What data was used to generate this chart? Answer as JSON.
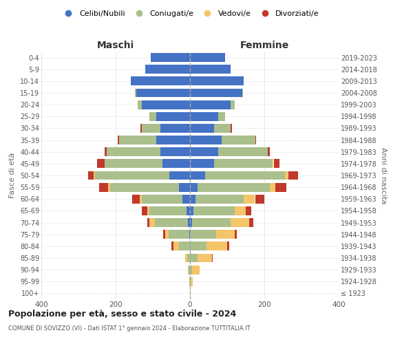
{
  "age_groups": [
    "100+",
    "95-99",
    "90-94",
    "85-89",
    "80-84",
    "75-79",
    "70-74",
    "65-69",
    "60-64",
    "55-59",
    "50-54",
    "45-49",
    "40-44",
    "35-39",
    "30-34",
    "25-29",
    "20-24",
    "15-19",
    "10-14",
    "5-9",
    "0-4"
  ],
  "birth_years": [
    "≤ 1923",
    "1924-1928",
    "1929-1933",
    "1934-1938",
    "1939-1943",
    "1944-1948",
    "1949-1953",
    "1954-1958",
    "1959-1963",
    "1964-1968",
    "1969-1973",
    "1974-1978",
    "1979-1983",
    "1984-1988",
    "1989-1993",
    "1994-1998",
    "1999-2003",
    "2004-2008",
    "2009-2013",
    "2014-2018",
    "2019-2023"
  ],
  "colors": {
    "celibe": "#4472C4",
    "coniugato": "#AABF8C",
    "vedovo": "#F5C56A",
    "divorziato": "#C0392B"
  },
  "maschi": {
    "celibe": [
      0,
      0,
      0,
      0,
      0,
      2,
      5,
      10,
      20,
      30,
      55,
      75,
      80,
      90,
      80,
      90,
      130,
      145,
      160,
      120,
      105
    ],
    "coniugato": [
      0,
      1,
      3,
      8,
      30,
      55,
      90,
      100,
      110,
      185,
      200,
      155,
      145,
      100,
      50,
      20,
      10,
      3,
      0,
      0,
      0
    ],
    "vedovo": [
      0,
      0,
      2,
      5,
      15,
      10,
      15,
      5,
      5,
      5,
      5,
      0,
      0,
      0,
      0,
      0,
      0,
      0,
      0,
      0,
      0
    ],
    "divorziato": [
      0,
      0,
      0,
      0,
      5,
      5,
      5,
      15,
      20,
      25,
      15,
      20,
      5,
      5,
      3,
      0,
      0,
      0,
      0,
      0,
      0
    ]
  },
  "femmine": {
    "celibe": [
      0,
      0,
      0,
      0,
      0,
      0,
      5,
      10,
      15,
      20,
      40,
      65,
      75,
      85,
      65,
      75,
      110,
      140,
      145,
      110,
      95
    ],
    "coniugato": [
      0,
      2,
      5,
      20,
      45,
      70,
      105,
      110,
      130,
      195,
      215,
      155,
      135,
      90,
      45,
      20,
      10,
      3,
      0,
      0,
      0
    ],
    "vedovo": [
      2,
      5,
      20,
      40,
      55,
      50,
      50,
      30,
      30,
      15,
      10,
      5,
      0,
      0,
      0,
      0,
      0,
      0,
      0,
      0,
      0
    ],
    "divorziato": [
      0,
      0,
      0,
      2,
      5,
      5,
      10,
      15,
      25,
      30,
      25,
      15,
      5,
      3,
      3,
      0,
      0,
      0,
      0,
      0,
      0
    ]
  },
  "title": "Popolazione per età, sesso e stato civile - 2024",
  "subtitle": "COMUNE DI SOVIZZO (VI) - Dati ISTAT 1° gennaio 2024 - Elaborazione TUTTITALIA.IT",
  "xlabel_left": "Maschi",
  "xlabel_right": "Femmine",
  "ylabel_left": "Fasce di età",
  "ylabel_right": "Anni di nascita",
  "xlim": 400,
  "legend_labels": [
    "Celibi/Nubili",
    "Coniugati/e",
    "Vedovi/e",
    "Divorziati/e"
  ],
  "background_color": "#ffffff",
  "grid_color": "#dddddd"
}
